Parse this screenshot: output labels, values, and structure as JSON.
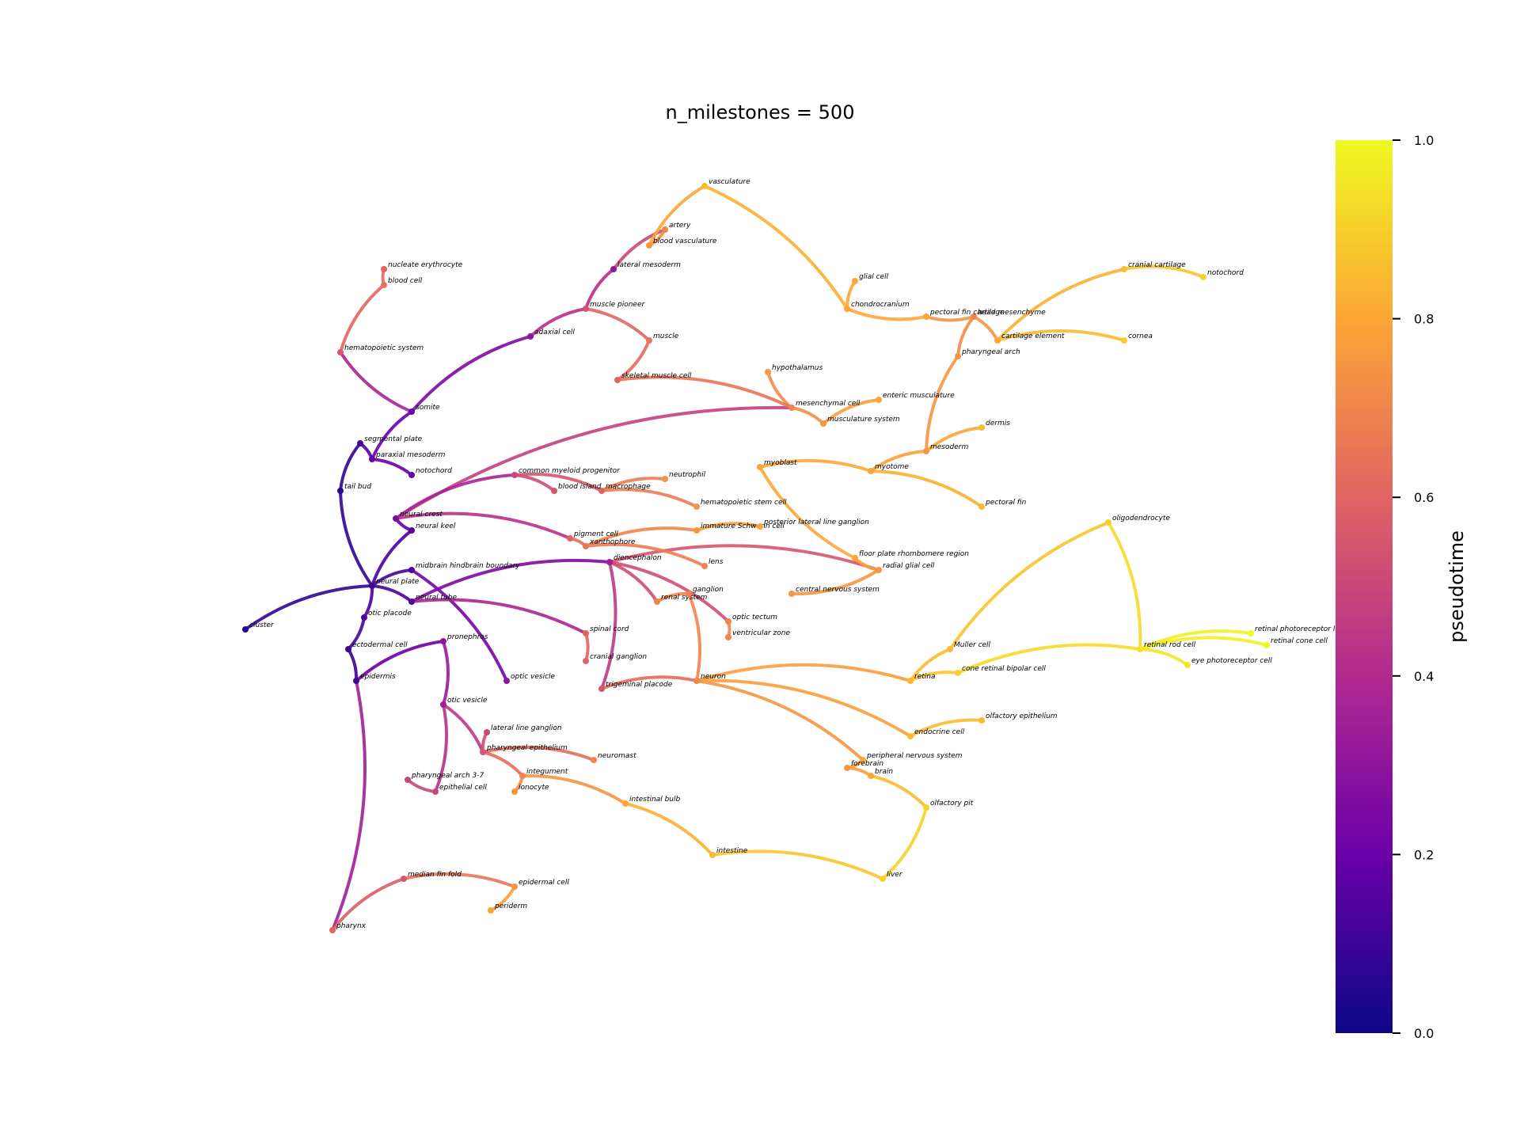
{
  "chart_data": {
    "type": "graph",
    "title": "n_milestones = 500",
    "colorbar": {
      "label": "pseudotime",
      "colormap": "plasma",
      "range": [
        0,
        1
      ],
      "ticks": [
        "0.0",
        "0.2",
        "0.4",
        "0.6",
        "0.8",
        "1.0"
      ]
    },
    "colors": {
      "plasma": [
        "#0d0887",
        "#6a00a8",
        "#b12a90",
        "#e16462",
        "#fca636",
        "#f0f921"
      ]
    },
    "nodes": [
      {
        "label": "nucleate erythrocyte",
        "t": 0.6
      },
      {
        "label": "blood cell",
        "t": 0.65
      },
      {
        "label": "hematopoietic system",
        "t": 0.55
      },
      {
        "label": "somite",
        "t": 0.2
      },
      {
        "label": "paraxial mesoderm",
        "t": 0.2
      },
      {
        "label": "segmental plate",
        "t": 0.1
      },
      {
        "label": "tail bud",
        "t": 0.05
      },
      {
        "label": "notochord",
        "t": 0.2
      },
      {
        "label": "neural crest",
        "t": 0.25
      },
      {
        "label": "neural keel",
        "t": 0.15
      },
      {
        "label": "optic vesicle",
        "t": 0.3
      },
      {
        "label": "diencephalon",
        "t": 0.35
      },
      {
        "label": "midbrain hindbrain boundary",
        "t": 0.15
      },
      {
        "label": "neural plate",
        "t": 0.1
      },
      {
        "label": "neural tube",
        "t": 0.15
      },
      {
        "label": "otic placode",
        "t": 0.15
      },
      {
        "label": "ectodermal cell",
        "t": 0.1
      },
      {
        "label": "epidermis",
        "t": 0.1
      },
      {
        "label": "cluster",
        "t": 0.05
      },
      {
        "label": "pronephros",
        "t": 0.3
      },
      {
        "label": "otic vesicle",
        "t": 0.35
      },
      {
        "label": "epidermal cell",
        "t": 0.75
      },
      {
        "label": "periderm",
        "t": 0.8
      },
      {
        "label": "pharynx",
        "t": 0.6
      },
      {
        "label": "median fin fold",
        "t": 0.55
      },
      {
        "label": "epithelial cell",
        "t": 0.5
      },
      {
        "label": "pharyngeal arch 3-7",
        "t": 0.5
      },
      {
        "label": "pharyngeal epithelium",
        "t": 0.55
      },
      {
        "label": "lateral line ganglion",
        "t": 0.5
      },
      {
        "label": "integument",
        "t": 0.7
      },
      {
        "label": "ionocyte",
        "t": 0.75
      },
      {
        "label": "intestinal bulb",
        "t": 0.8
      },
      {
        "label": "intestine",
        "t": 0.85
      },
      {
        "label": "liver",
        "t": 0.9
      },
      {
        "label": "neuromast",
        "t": 0.7
      },
      {
        "label": "trigeminal placode",
        "t": 0.55
      },
      {
        "label": "neuron",
        "t": 0.7
      },
      {
        "label": "peripheral nervous system",
        "t": 0.8
      },
      {
        "label": "forebrain",
        "t": 0.75
      },
      {
        "label": "brain",
        "t": 0.8
      },
      {
        "label": "olfactory pit",
        "t": 0.9
      },
      {
        "label": "olfactory epithelium",
        "t": 0.85
      },
      {
        "label": "endocrine cell",
        "t": 0.85
      },
      {
        "label": "retina",
        "t": 0.85
      },
      {
        "label": "cone retinal bipolar cell",
        "t": 0.9
      },
      {
        "label": "retinal rod cell",
        "t": 0.95
      },
      {
        "label": "retinal photoreceptor layer",
        "t": 1.0
      },
      {
        "label": "retinal cone cell",
        "t": 1.0
      },
      {
        "label": "eye photoreceptor cell",
        "t": 0.95
      },
      {
        "label": "Muller cell",
        "t": 0.85
      },
      {
        "label": "oligodendrocyte",
        "t": 0.9
      },
      {
        "label": "radial glial cell",
        "t": 0.75
      },
      {
        "label": "central nervous system",
        "t": 0.75
      },
      {
        "label": "floor plate rhombomere region",
        "t": 0.8
      },
      {
        "label": "myoblast",
        "t": 0.8
      },
      {
        "label": "myotome",
        "t": 0.8
      },
      {
        "label": "pectoral fin",
        "t": 0.85
      },
      {
        "label": "mesoderm",
        "t": 0.75
      },
      {
        "label": "dermis",
        "t": 0.85
      },
      {
        "label": "pharyngeal arch",
        "t": 0.75
      },
      {
        "label": "head mesenchyme",
        "t": 0.7
      },
      {
        "label": "mesenchymal cell",
        "t": 0.7
      },
      {
        "label": "musculature system",
        "t": 0.75
      },
      {
        "label": "enteric musculature",
        "t": 0.8
      },
      {
        "label": "cartilage element",
        "t": 0.8
      },
      {
        "label": "cranial cartilage",
        "t": 0.85
      },
      {
        "label": "notochord ",
        "t": 0.9
      },
      {
        "label": "cornea",
        "t": 0.9
      },
      {
        "label": "glial cell",
        "t": 0.8
      },
      {
        "label": "chondrocranium",
        "t": 0.8
      },
      {
        "label": "pectoral fin cartilage",
        "t": 0.8
      },
      {
        "label": "hypothalamus",
        "t": 0.75
      },
      {
        "label": "vasculature",
        "t": 0.85
      },
      {
        "label": "blood vasculature",
        "t": 0.75
      },
      {
        "label": "artery",
        "t": 0.7
      },
      {
        "label": "lateral mesoderm",
        "t": 0.3
      },
      {
        "label": "muscle pioneer",
        "t": 0.55
      },
      {
        "label": "muscle",
        "t": 0.65
      },
      {
        "label": "adaxial cell",
        "t": 0.3
      },
      {
        "label": "skeletal muscle cell",
        "t": 0.6
      },
      {
        "label": "macrophage",
        "t": 0.6
      },
      {
        "label": "common myeloid progenitor",
        "t": 0.5
      },
      {
        "label": "neutrophil",
        "t": 0.75
      },
      {
        "label": "hematopoietic stem cell",
        "t": 0.75
      },
      {
        "label": "blood island",
        "t": 0.55
      },
      {
        "label": "pigment cell",
        "t": 0.6
      },
      {
        "label": "xanthophore",
        "t": 0.65
      },
      {
        "label": "lens",
        "t": 0.7
      },
      {
        "label": "immature Schwann cell",
        "t": 0.75
      },
      {
        "label": "posterior lateral line ganglion",
        "t": 0.8
      },
      {
        "label": "optic tectum",
        "t": 0.7
      },
      {
        "label": "ventricular zone",
        "t": 0.7
      },
      {
        "label": "spinal cord",
        "t": 0.6
      },
      {
        "label": "cranial ganglion",
        "t": 0.6
      },
      {
        "label": "renal system",
        "t": 0.7
      },
      {
        "label": "ganglion",
        "t": 0.7
      }
    ]
  }
}
